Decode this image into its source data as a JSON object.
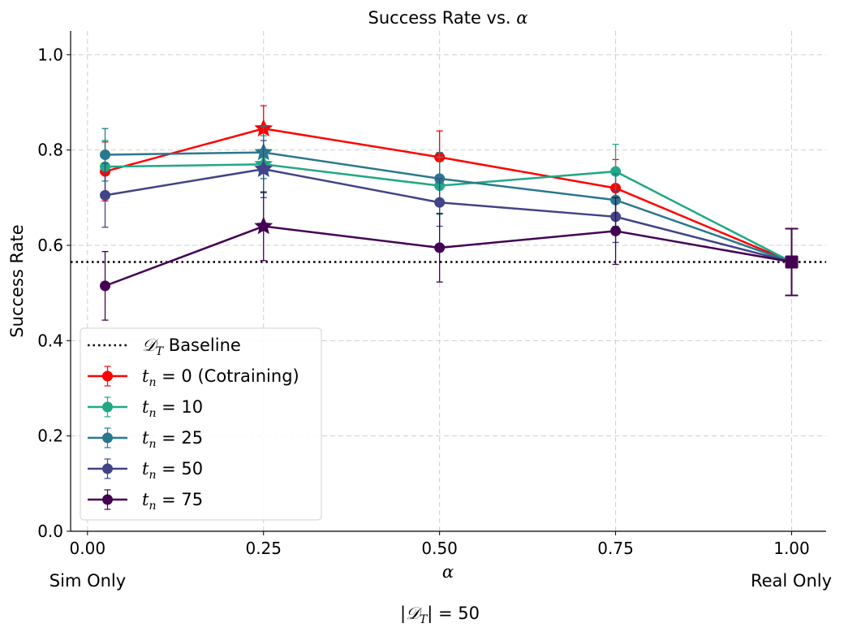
{
  "chart_data": {
    "type": "line",
    "title": "Success Rate vs. α",
    "title_prefix": "Success Rate vs. ",
    "title_symbol": "α",
    "xlabel": "α",
    "ylabel": "Success Rate",
    "footer_label": "|𝒟T| = 50",
    "footer_parts": {
      "open": "|",
      "symbol": "𝒟",
      "sub": "T",
      "close": "| = 50"
    },
    "x_extra_labels": {
      "left": "Sim Only",
      "right": "Real Only"
    },
    "xlim": [
      -0.024,
      1.049
    ],
    "ylim": [
      0.0,
      1.05
    ],
    "xticks": [
      0.0,
      0.25,
      0.5,
      0.75,
      1.0
    ],
    "xtick_labels": [
      "0.00",
      "0.25",
      "0.50",
      "0.75",
      "1.00"
    ],
    "yticks": [
      0.0,
      0.2,
      0.4,
      0.6,
      0.8,
      1.0
    ],
    "ytick_labels": [
      "0.0",
      "0.2",
      "0.4",
      "0.6",
      "0.8",
      "1.0"
    ],
    "grid": true,
    "legend_position": "lower-left",
    "baseline": {
      "name": "𝒟T Baseline",
      "label_symbol": "𝒟",
      "label_sub": "T",
      "label_rest": " Baseline",
      "value": 0.565,
      "color": "#000000",
      "style": "dotted"
    },
    "series": [
      {
        "name": "t_n = 0 (Cotraining)",
        "label_value": "0 (Cotraining)",
        "color": "#ff0000",
        "x": [
          0.025,
          0.25,
          0.5,
          0.75
        ],
        "y": [
          0.755,
          0.845,
          0.785,
          0.72
        ],
        "yerr": [
          0.062,
          0.048,
          0.055,
          0.06
        ],
        "best_index": 1
      },
      {
        "name": "t_n = 10",
        "label_value": "10",
        "color": "#22a884",
        "x": [
          0.025,
          0.25,
          0.5,
          0.75
        ],
        "y": [
          0.765,
          0.77,
          0.725,
          0.755
        ],
        "yerr": [
          0.055,
          0.06,
          0.06,
          0.057
        ],
        "best_index": 1
      },
      {
        "name": "t_n = 25",
        "label_value": "25",
        "color": "#2a788e",
        "x": [
          0.025,
          0.25,
          0.5,
          0.75
        ],
        "y": [
          0.79,
          0.795,
          0.74,
          0.695
        ],
        "yerr": [
          0.055,
          0.055,
          0.055,
          0.055
        ],
        "best_index": 1
      },
      {
        "name": "t_n = 50",
        "label_value": "50",
        "color": "#414487",
        "x": [
          0.025,
          0.25,
          0.5,
          0.75
        ],
        "y": [
          0.705,
          0.76,
          0.69,
          0.66
        ],
        "yerr": [
          0.067,
          0.06,
          0.05,
          0.054
        ],
        "best_index": 1
      },
      {
        "name": "t_n = 75",
        "label_value": "75",
        "color": "#440154",
        "x": [
          0.025,
          0.25,
          0.5,
          0.75
        ],
        "y": [
          0.515,
          0.64,
          0.595,
          0.63
        ],
        "yerr": [
          0.072,
          0.072,
          0.072,
          0.07
        ],
        "best_index": 1
      }
    ],
    "real_only": {
      "name": "Real Only",
      "color": "#440154",
      "x": 1.0,
      "y": 0.565,
      "yerr": 0.07,
      "marker": "square"
    }
  }
}
